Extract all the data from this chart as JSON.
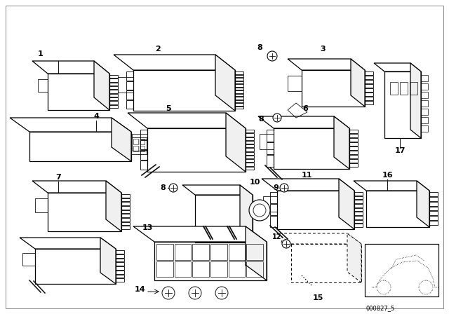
{
  "background_color": "#ffffff",
  "diagram_id": "000827_5",
  "line_color": "#000000",
  "lw": 0.9
}
